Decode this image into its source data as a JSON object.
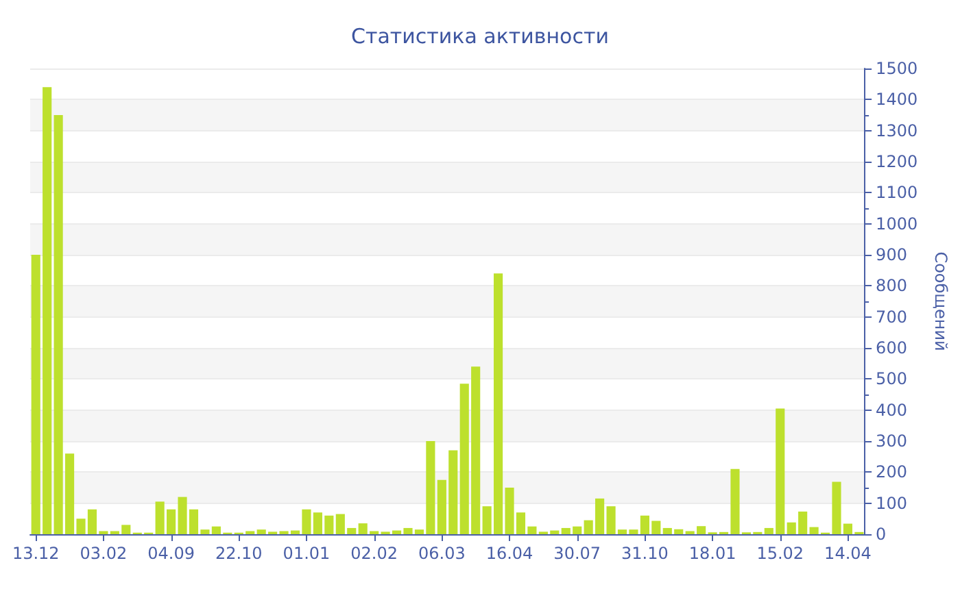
{
  "chart_data": {
    "type": "bar",
    "title": "Статистика активности",
    "ylabel": "Сообщений",
    "categories": [
      "13.12",
      null,
      null,
      null,
      null,
      null,
      "03.02",
      null,
      null,
      null,
      null,
      null,
      "04.09",
      null,
      null,
      null,
      null,
      null,
      "22.10",
      null,
      null,
      null,
      null,
      null,
      "01.01",
      null,
      null,
      null,
      null,
      null,
      "02.02",
      null,
      null,
      null,
      null,
      null,
      "06.03",
      null,
      null,
      null,
      null,
      null,
      "16.04",
      null,
      null,
      null,
      null,
      null,
      "30.07",
      null,
      null,
      null,
      null,
      null,
      "31.10",
      null,
      null,
      null,
      null,
      null,
      "18.01",
      null,
      null,
      null,
      null,
      null,
      "15.02",
      null,
      null,
      null,
      null,
      null,
      "14.04",
      null
    ],
    "values": [
      900,
      1440,
      1350,
      260,
      50,
      80,
      10,
      10,
      30,
      5,
      5,
      105,
      80,
      120,
      80,
      15,
      25,
      5,
      5,
      10,
      15,
      8,
      10,
      12,
      80,
      70,
      60,
      65,
      20,
      35,
      10,
      8,
      12,
      20,
      15,
      300,
      175,
      270,
      485,
      540,
      90,
      840,
      150,
      70,
      25,
      8,
      12,
      20,
      25,
      45,
      115,
      90,
      15,
      15,
      60,
      43,
      20,
      16,
      10,
      26,
      6,
      7,
      210,
      6,
      7,
      20,
      405,
      38,
      73,
      23,
      5,
      169,
      34,
      7
    ],
    "color": "#bde02d",
    "ylim": [
      0,
      1500
    ],
    "yticks": [
      0,
      100,
      200,
      300,
      400,
      500,
      600,
      700,
      800,
      900,
      1000,
      1100,
      1200,
      1300,
      1400,
      1500
    ],
    "grid": "y"
  }
}
